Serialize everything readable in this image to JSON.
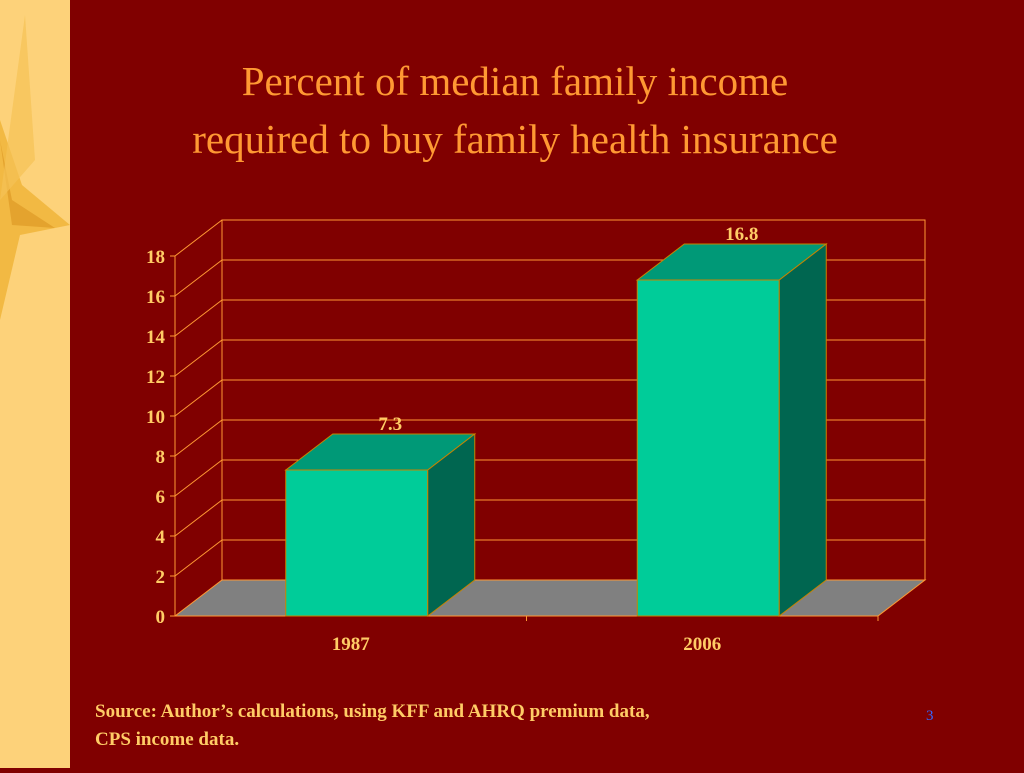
{
  "slide": {
    "title_line1": "Percent of median family income",
    "title_line2": "required to buy family health insurance",
    "source_line1": "Source: Author’s calculations, using KFF and AHRQ premium data,",
    "source_line2": "CPS income data.",
    "page_number": "3"
  },
  "colors": {
    "background": "#800000",
    "side_band": "#fdd27a",
    "title": "#ff9933",
    "gridline": "#ff9933",
    "floor": "#808080",
    "bar_front": "#00cc99",
    "bar_top": "#009977",
    "bar_side": "#006650",
    "labels": "#ffcc66",
    "page_number": "#3366ff"
  },
  "chart_data": {
    "type": "bar",
    "categories": [
      "1987",
      "2006"
    ],
    "values": [
      7.3,
      16.8
    ],
    "data_labels": [
      "7.3",
      "16.8"
    ],
    "ylim": [
      0,
      18
    ],
    "yticks": [
      0,
      2,
      4,
      6,
      8,
      10,
      12,
      14,
      16,
      18
    ],
    "grid": true,
    "legend": "none",
    "style": "3d"
  }
}
